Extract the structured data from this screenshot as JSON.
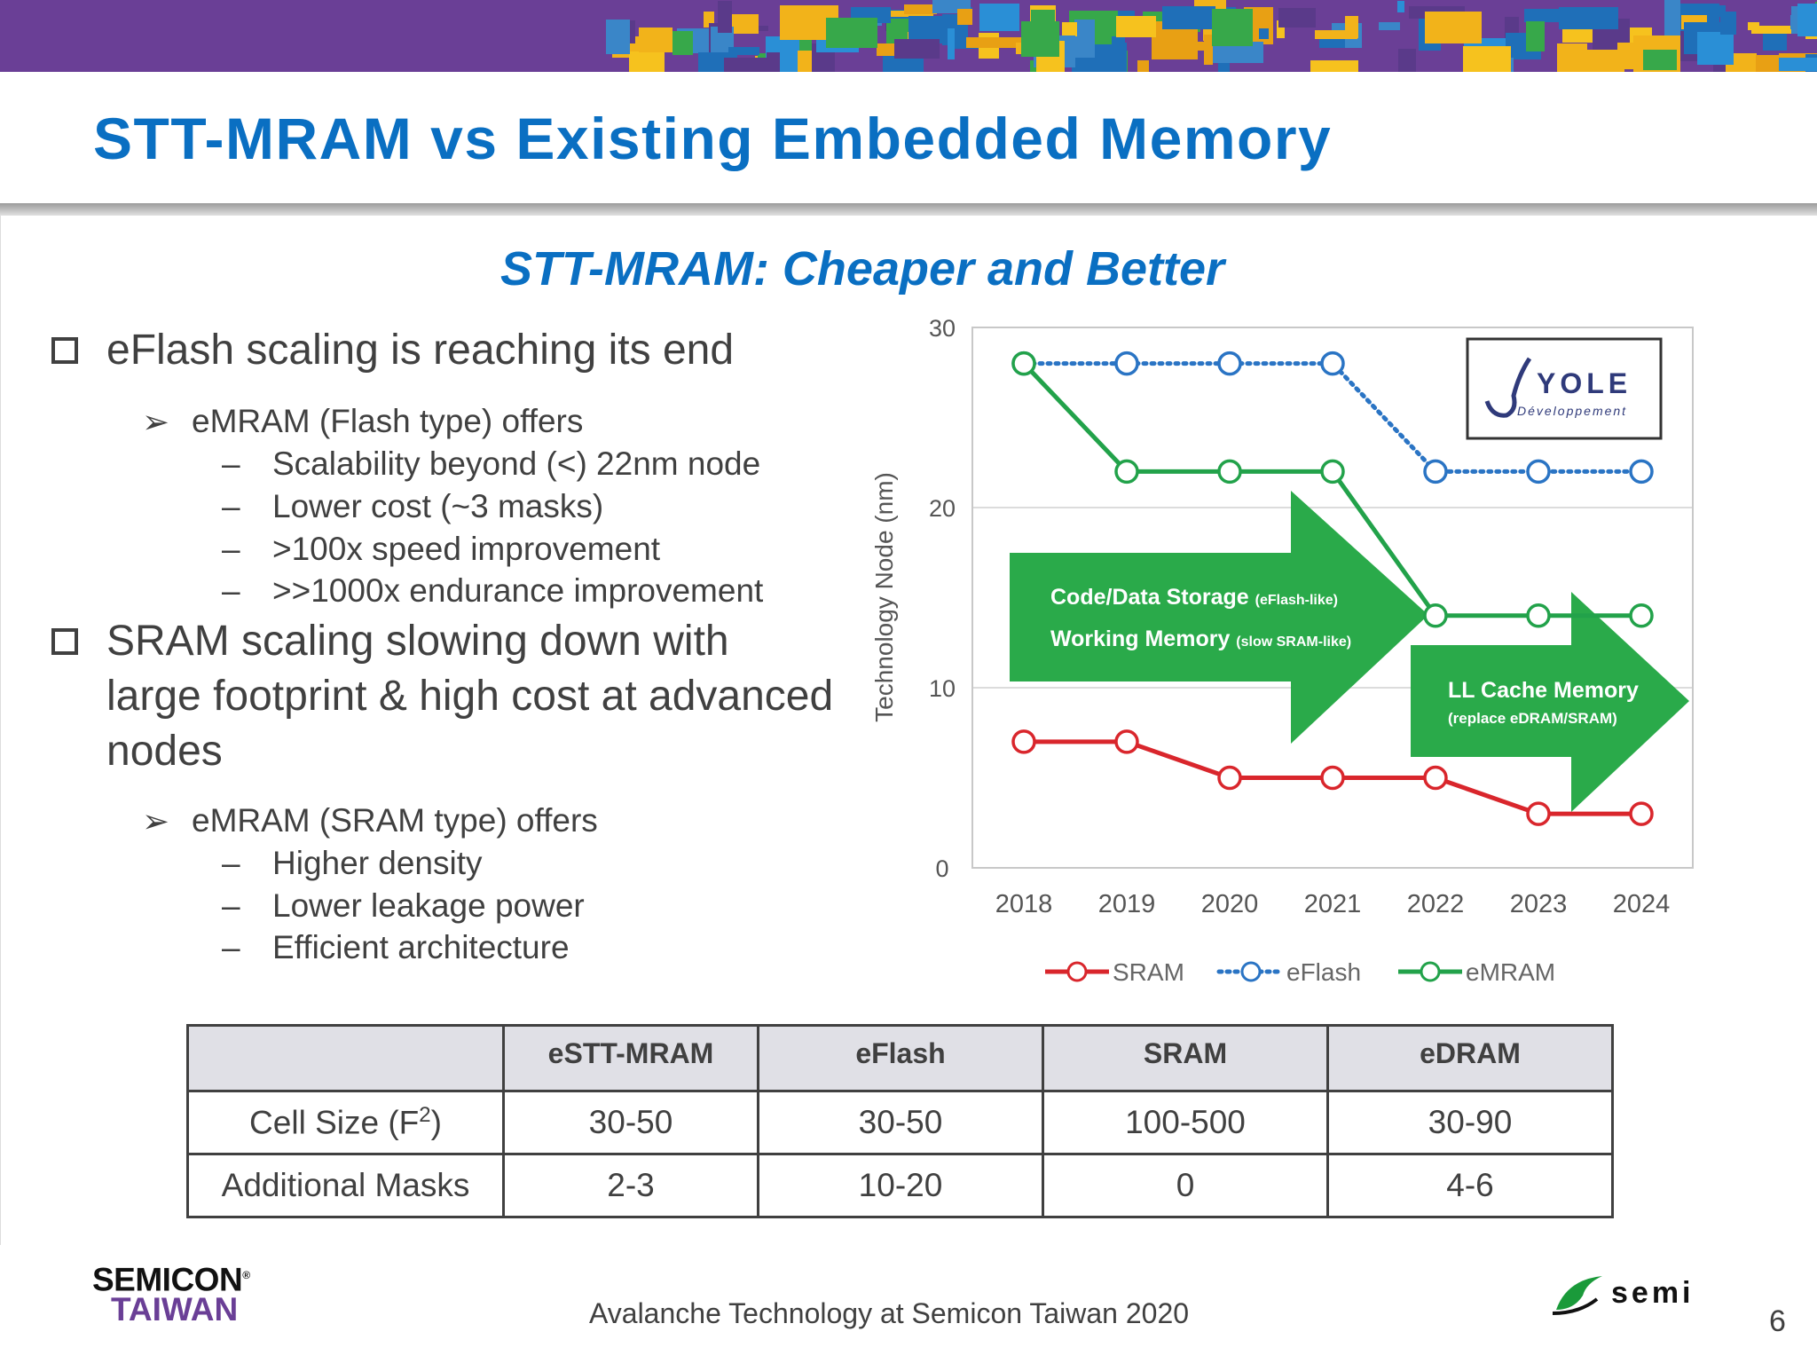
{
  "slide": {
    "title": "STT-MRAM vs Existing Embedded Memory",
    "subtitle": "STT-MRAM: Cheaper and Better",
    "page_number": "6",
    "footer": "Avalanche Technology at Semicon Taiwan 2020",
    "logos": {
      "semicon_line1": "SEMICON",
      "semicon_reg": "®",
      "semicon_line2": "TAIWAN",
      "semi": "semi",
      "yole_name": "YOLE",
      "yole_sub": "Développement"
    }
  },
  "bullets": {
    "b1": {
      "text": "eFlash scaling is reaching its end"
    },
    "b1_sub": {
      "text": "eMRAM (Flash type) offers"
    },
    "b1_items": [
      "Scalability beyond (<) 22nm node",
      "Lower cost (~3 masks)",
      ">100x speed improvement",
      ">>1000x endurance improvement"
    ],
    "b2": {
      "text": "SRAM scaling slowing down with large footprint & high cost at advanced nodes"
    },
    "b2_sub": {
      "text": "eMRAM (SRAM type) offers"
    },
    "b2_items": [
      "Higher density",
      "Lower leakage power",
      "Efficient architecture"
    ],
    "arrow_glyph": "➢",
    "dash_glyph": "–"
  },
  "chart_data": {
    "type": "line",
    "ylabel": "Technology Node (nm)",
    "xlabel": "",
    "ylim": [
      0,
      30
    ],
    "yticks": [
      "0",
      "10",
      "20",
      "30"
    ],
    "categories": [
      "2018",
      "2019",
      "2020",
      "2021",
      "2022",
      "2023",
      "2024"
    ],
    "series": [
      {
        "name": "SRAM",
        "values": [
          7,
          7,
          5,
          5,
          5,
          3,
          3
        ],
        "color": "#d9262c",
        "style": "solid"
      },
      {
        "name": "eFlash",
        "values": [
          28,
          28,
          28,
          28,
          22,
          22,
          22
        ],
        "color": "#2a74c4",
        "style": "dotted"
      },
      {
        "name": "eMRAM",
        "values": [
          28,
          22,
          22,
          22,
          14,
          14,
          14
        ],
        "color": "#22a24a",
        "style": "solid"
      }
    ],
    "grid": true,
    "legend_position": "bottom",
    "annotations": [
      {
        "line1": "Code/Data Storage",
        "line1_small": "(eFlash-like)",
        "line2": "Working Memory",
        "line2_small": "(slow SRAM-like)"
      },
      {
        "line1": "LL Cache Memory",
        "line2_small": "(replace eDRAM/SRAM)"
      }
    ],
    "arrow_color": "#2aaa4a"
  },
  "table": {
    "headers": [
      "",
      "eSTT-MRAM",
      "eFlash",
      "SRAM",
      "eDRAM"
    ],
    "rows": [
      {
        "label": "Cell Size (F",
        "label_sup": "2",
        "label_tail": ")",
        "values": [
          "30-50",
          "30-50",
          "100-500",
          "30-90"
        ]
      },
      {
        "label": "Additional Masks",
        "values": [
          "2-3",
          "10-20",
          "0",
          "4-6"
        ]
      }
    ]
  }
}
